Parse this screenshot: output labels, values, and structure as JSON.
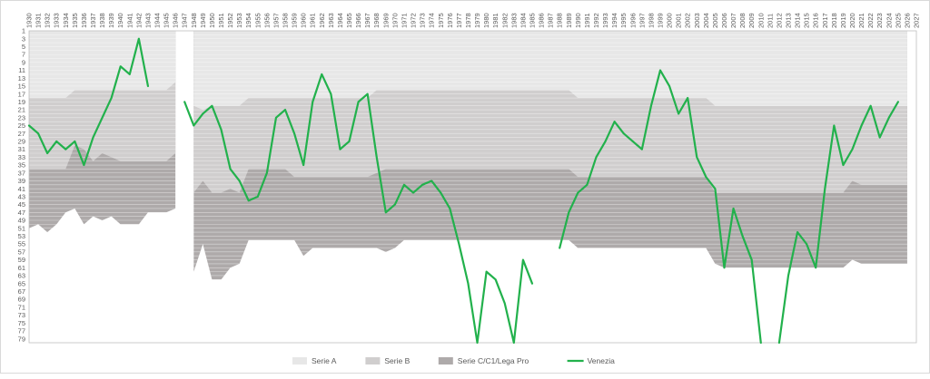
{
  "chart_data": {
    "type": "area",
    "title": "",
    "xlabel": "",
    "ylabel": "",
    "y_reversed": true,
    "ylim": [
      1,
      80
    ],
    "grid": true,
    "legend_position": "bottom",
    "x": [
      "1930",
      "1931",
      "1932",
      "1933",
      "1934",
      "1935",
      "1936",
      "1937",
      "1938",
      "1939",
      "1940",
      "1941",
      "1942",
      "1943",
      "1944",
      "1945",
      "1946",
      "1947",
      "1948",
      "1949",
      "1950",
      "1951",
      "1952",
      "1953",
      "1954",
      "1955",
      "1956",
      "1957",
      "1958",
      "1959",
      "1960",
      "1961",
      "1962",
      "1963",
      "1964",
      "1965",
      "1966",
      "1967",
      "1968",
      "1969",
      "1970",
      "1971",
      "1972",
      "1973",
      "1974",
      "1975",
      "1976",
      "1977",
      "1978",
      "1979",
      "1980",
      "1981",
      "1982",
      "1983",
      "1984",
      "1985",
      "1986",
      "1987",
      "1988",
      "1989",
      "1990",
      "1991",
      "1992",
      "1993",
      "1994",
      "1995",
      "1996",
      "1997",
      "1998",
      "1999",
      "2000",
      "2001",
      "2002",
      "2003",
      "2004",
      "2005",
      "2006",
      "2007",
      "2008",
      "2009",
      "2010",
      "2011",
      "2012",
      "2013",
      "2014",
      "2015",
      "2016",
      "2017",
      "2018",
      "2019",
      "2020",
      "2021",
      "2022",
      "2023",
      "2024",
      "2025",
      "2026",
      "2027"
    ],
    "y_ticks": [
      1,
      3,
      5,
      7,
      9,
      11,
      13,
      15,
      17,
      19,
      21,
      23,
      25,
      27,
      29,
      31,
      33,
      35,
      37,
      39,
      41,
      43,
      45,
      47,
      49,
      51,
      53,
      55,
      57,
      59,
      61,
      63,
      65,
      67,
      69,
      71,
      73,
      75,
      77,
      79
    ],
    "series": [
      {
        "name": "Serie A",
        "kind": "area",
        "color": "#e7e7e7",
        "values": [
          18,
          18,
          18,
          18,
          18,
          16,
          16,
          16,
          16,
          16,
          16,
          16,
          16,
          16,
          16,
          16,
          14,
          null,
          20,
          21,
          20,
          20,
          20,
          20,
          18,
          18,
          18,
          18,
          18,
          18,
          18,
          18,
          18,
          18,
          18,
          18,
          18,
          18,
          16,
          16,
          16,
          16,
          16,
          16,
          16,
          16,
          16,
          16,
          16,
          16,
          16,
          16,
          16,
          16,
          16,
          16,
          16,
          16,
          16,
          16,
          18,
          18,
          18,
          18,
          18,
          18,
          18,
          18,
          18,
          18,
          18,
          18,
          18,
          18,
          18,
          20,
          20,
          20,
          20,
          20,
          20,
          20,
          20,
          20,
          20,
          20,
          20,
          20,
          20,
          20,
          20,
          20,
          20,
          20,
          20,
          20,
          20,
          null
        ]
      },
      {
        "name": "Serie B",
        "kind": "area",
        "color": "#d0cece",
        "values": [
          36,
          36,
          36,
          36,
          36,
          30,
          31,
          34,
          32,
          33,
          34,
          34,
          34,
          34,
          34,
          34,
          32,
          null,
          42,
          39,
          42,
          42,
          41,
          42,
          36,
          36,
          36,
          36,
          36,
          38,
          38,
          38,
          38,
          38,
          38,
          38,
          38,
          38,
          37,
          36,
          36,
          36,
          36,
          36,
          36,
          36,
          36,
          36,
          36,
          36,
          36,
          36,
          36,
          36,
          36,
          36,
          36,
          36,
          36,
          36,
          38,
          38,
          38,
          38,
          38,
          38,
          38,
          38,
          38,
          38,
          38,
          38,
          38,
          38,
          38,
          42,
          42,
          42,
          42,
          42,
          42,
          42,
          42,
          42,
          42,
          42,
          42,
          42,
          42,
          42,
          39,
          40,
          40,
          40,
          40,
          40,
          40,
          null
        ]
      },
      {
        "name": "Serie C/C1/Lega Pro",
        "kind": "area",
        "color": "#aeaaaa",
        "values": [
          51,
          50,
          52,
          50,
          47,
          46,
          50,
          48,
          49,
          48,
          50,
          50,
          50,
          47,
          47,
          47,
          46,
          null,
          62,
          55,
          64,
          64,
          61,
          60,
          54,
          54,
          54,
          54,
          54,
          54,
          58,
          56,
          56,
          56,
          56,
          56,
          56,
          56,
          56,
          57,
          56,
          54,
          54,
          54,
          54,
          54,
          54,
          54,
          54,
          54,
          54,
          54,
          54,
          54,
          54,
          54,
          54,
          54,
          54,
          54,
          56,
          56,
          56,
          56,
          56,
          56,
          56,
          56,
          56,
          56,
          56,
          56,
          56,
          56,
          56,
          60,
          61,
          61,
          61,
          61,
          61,
          61,
          61,
          61,
          61,
          61,
          61,
          61,
          61,
          61,
          59,
          60,
          60,
          60,
          60,
          60,
          60,
          null
        ]
      },
      {
        "name": "Venezia",
        "kind": "line",
        "color": "#22b14c",
        "values": [
          25,
          27,
          32,
          29,
          31,
          29,
          35,
          28,
          23,
          18,
          10,
          12,
          3,
          15,
          null,
          null,
          null,
          19,
          25,
          22,
          20,
          26,
          36,
          39,
          44,
          43,
          37,
          23,
          21,
          27,
          35,
          19,
          12,
          17,
          31,
          29,
          19,
          17,
          33,
          47,
          45,
          40,
          42,
          40,
          39,
          42,
          46,
          55,
          65,
          80,
          62,
          64,
          70,
          80,
          59,
          65,
          null,
          null,
          56,
          47,
          42,
          40,
          33,
          29,
          24,
          27,
          29,
          31,
          20,
          11,
          15,
          22,
          18,
          33,
          38,
          41,
          61,
          46,
          53,
          59,
          80,
          null,
          80,
          63,
          52,
          55,
          61,
          41,
          25,
          35,
          31,
          25,
          20,
          28,
          23,
          19,
          null,
          null
        ]
      }
    ]
  }
}
